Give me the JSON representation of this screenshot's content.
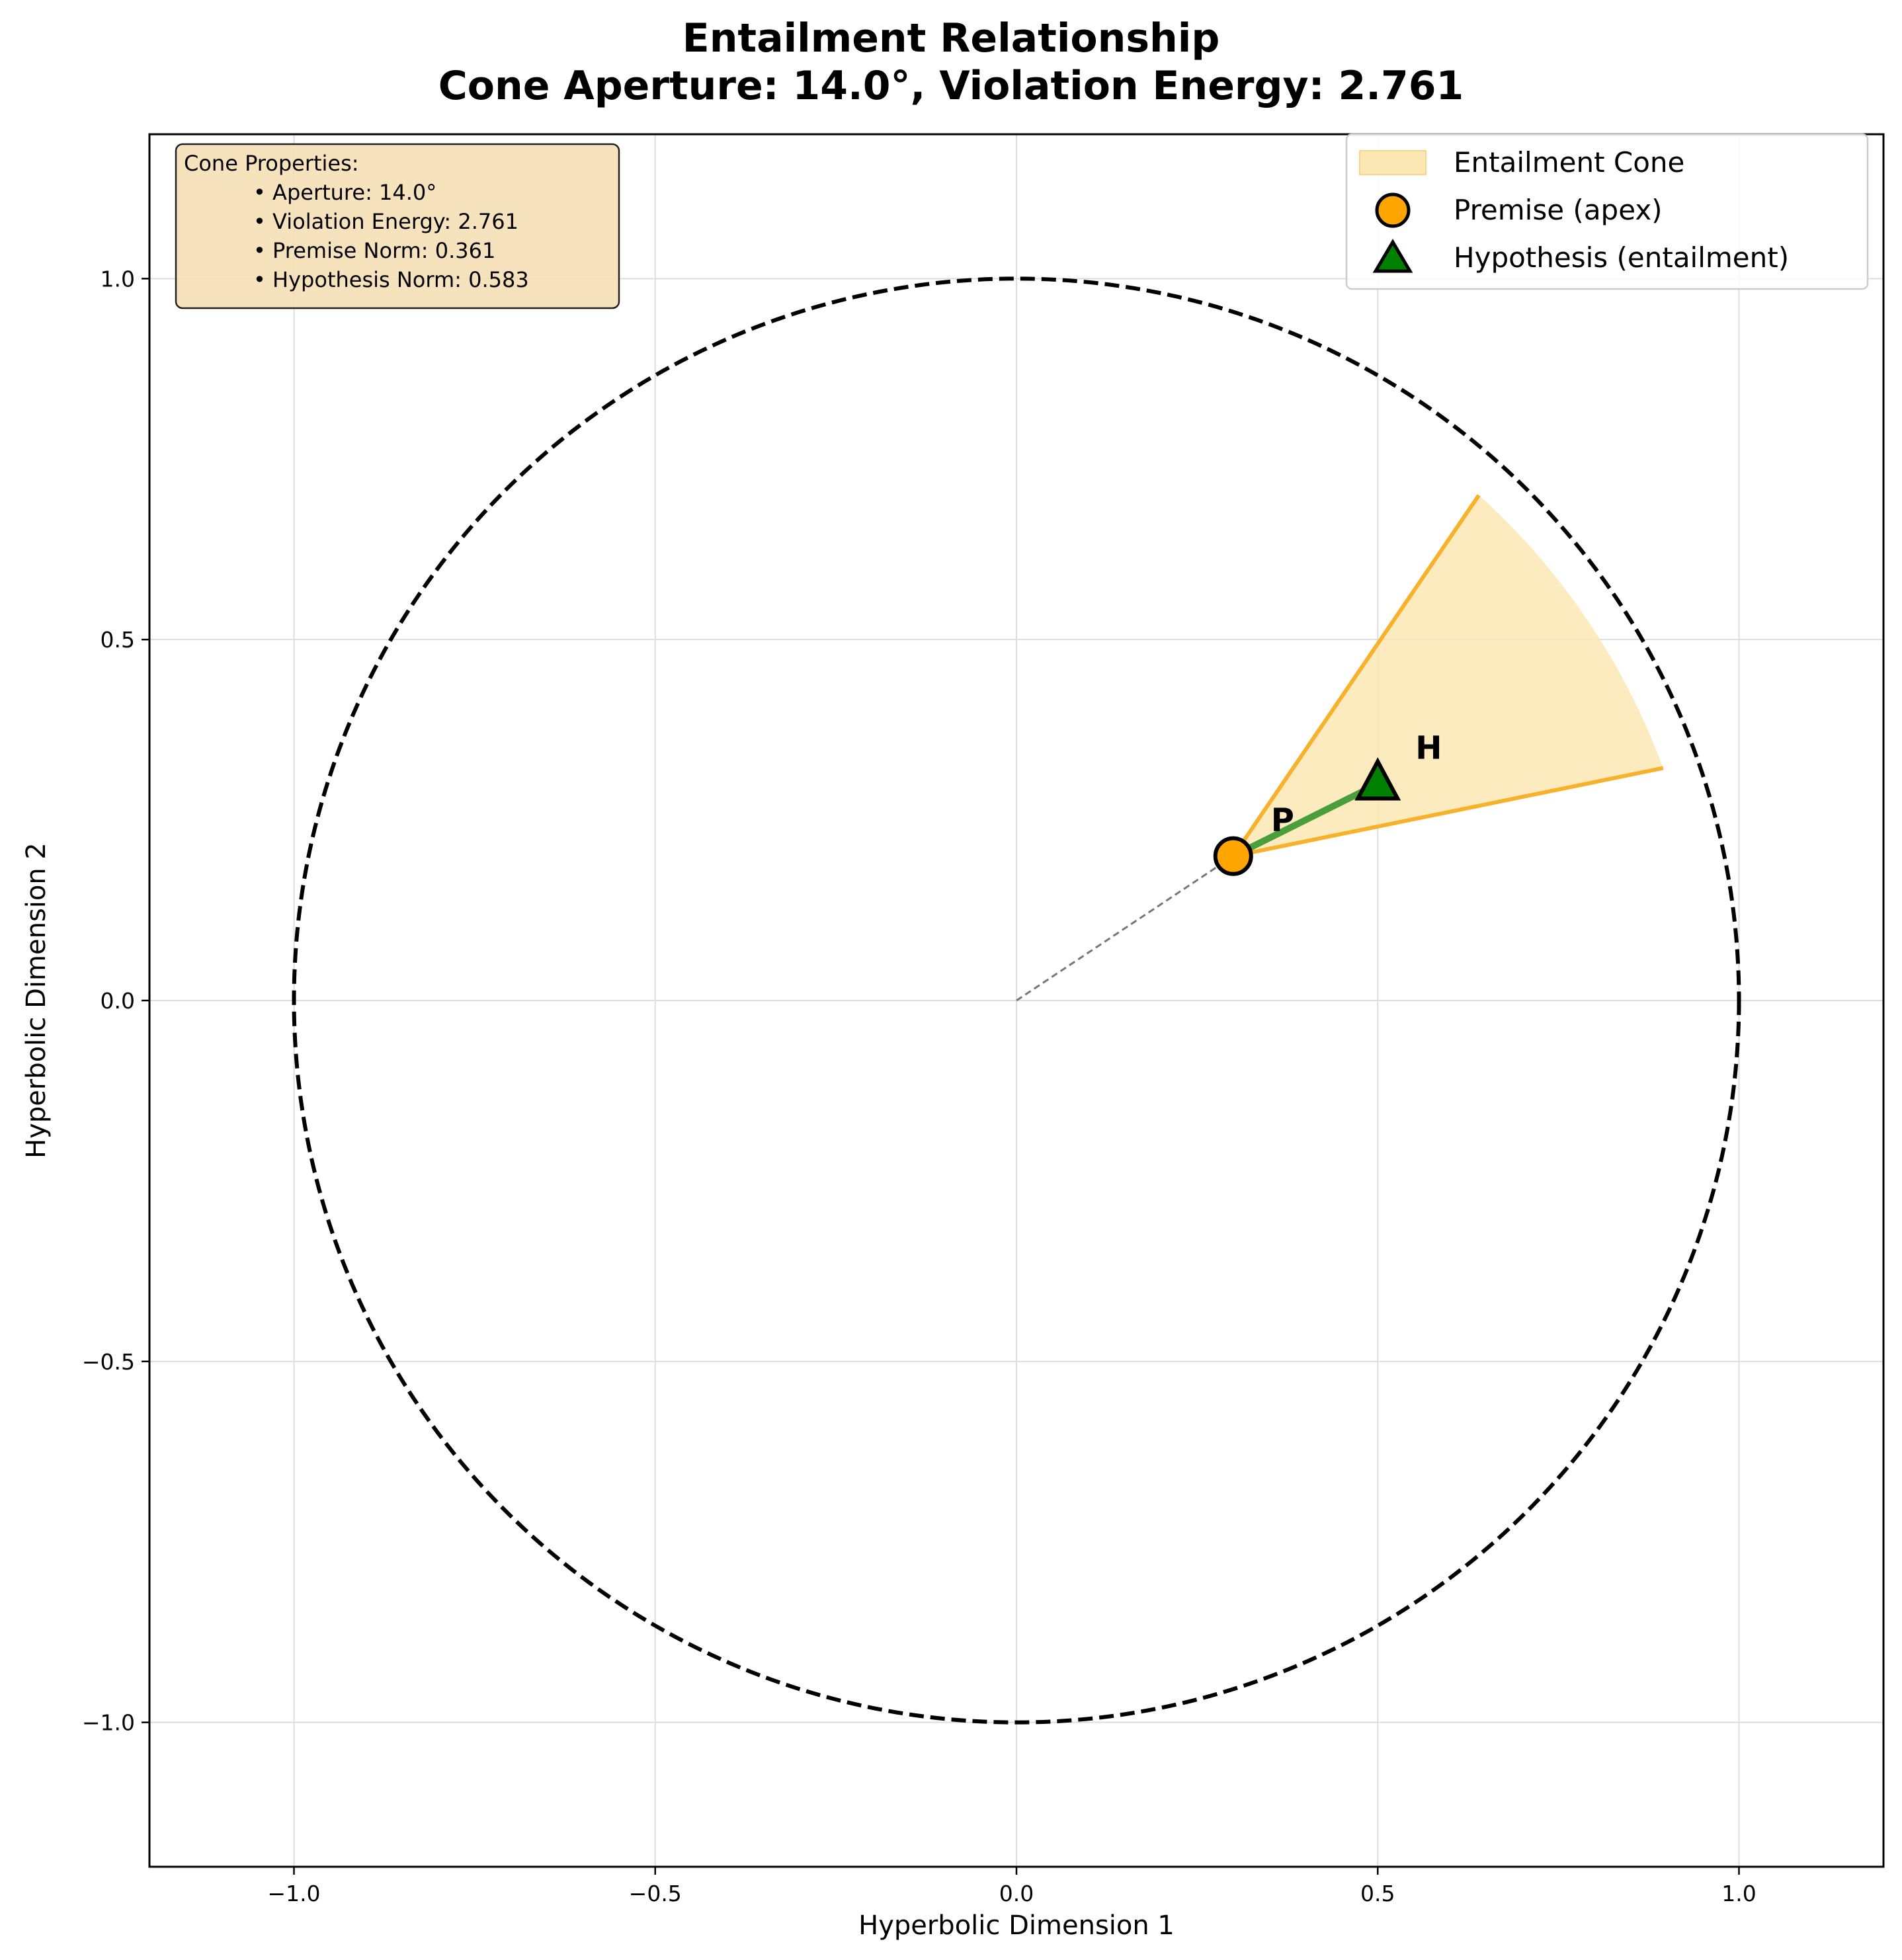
{
  "chart_data": {
    "type": "scatter",
    "title_line1": "Entailment Relationship",
    "title_line2": "Cone Aperture: 14.0°, Violation Energy: 2.761",
    "xlabel": "Hyperbolic Dimension 1",
    "ylabel": "Hyperbolic Dimension 2",
    "xlim": [
      -1.2,
      1.2
    ],
    "ylim": [
      -1.2,
      1.2
    ],
    "grid": true,
    "x_ticks": [
      -1.0,
      -0.5,
      0.0,
      0.5,
      1.0
    ],
    "y_ticks": [
      -1.0,
      -0.5,
      0.0,
      0.5,
      1.0
    ],
    "x_tick_labels": [
      "−1.0",
      "−0.5",
      "0.0",
      "0.5",
      "1.0"
    ],
    "y_tick_labels": [
      "−1.0",
      "−0.5",
      "0.0",
      "0.5",
      "1.0"
    ],
    "boundary": {
      "type": "unit circle",
      "radius": 1.0,
      "style": "dashed",
      "color": "#000000"
    },
    "cone": {
      "apex": [
        0.3,
        0.2
      ],
      "edge_upper_end": [
        0.64,
        0.7
      ],
      "edge_lower_end": [
        0.895,
        0.322
      ],
      "fill": "#fde7b5",
      "edge_color": "#f8b12b"
    },
    "axis_line": {
      "from": [
        0.0,
        0.0
      ],
      "to": [
        0.3,
        0.2
      ],
      "style": "dashed",
      "color": "#777777"
    },
    "entailment_link": {
      "from": [
        0.3,
        0.2
      ],
      "to": [
        0.5,
        0.3
      ],
      "color": "#4a9e3c"
    },
    "points": [
      {
        "name": "Premise (apex)",
        "x": 0.3,
        "y": 0.2,
        "marker": "circle",
        "color": "#ffa500",
        "label": "P"
      },
      {
        "name": "Hypothesis (entailment)",
        "x": 0.5,
        "y": 0.3,
        "marker": "triangle",
        "color": "#008000",
        "label": "H"
      }
    ],
    "legend": {
      "placement": "top-right",
      "entries": [
        "Entailment Cone",
        "Premise (apex)",
        "Hypothesis (entailment)"
      ]
    },
    "info_box": {
      "placement": "top-left",
      "title": "Cone Properties:",
      "lines": [
        "• Aperture: 14.0°",
        "• Violation Energy: 2.761",
        "• Premise Norm: 0.361",
        "• Hypothesis Norm: 0.583"
      ]
    }
  }
}
